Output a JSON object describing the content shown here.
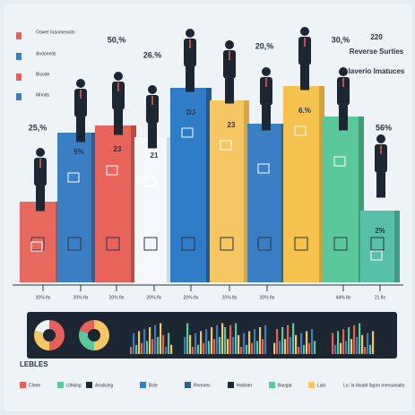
{
  "legend_top": [
    "Oower Inaomeonds",
    "Andoneds",
    "Bisode",
    "Mnods"
  ],
  "right_header": {
    "number": "220",
    "title": "Reverse Surties",
    "subtitle": "Iaverio Imatuces"
  },
  "percent_labels": [
    "25,%",
    "50,%",
    "26.%",
    "20,%",
    "30,%",
    "56%"
  ],
  "bar_labels": [
    "5%",
    "23",
    "21",
    "DJ",
    "23",
    "6.%",
    "2%"
  ],
  "axis_labels": [
    "20% flo",
    "20% flo",
    "20% flo",
    "20% flo",
    "20% flo",
    "20% flo",
    "20% flo",
    "44% flo",
    "21 flo"
  ],
  "legend_bottom": {
    "title": "LEBLES",
    "items": [
      "Clone",
      "Ulhking",
      "Analising",
      "Bsle",
      "Rnnmes",
      "Hokbier",
      "Bavgar",
      "Lalo"
    ],
    "note": "Lo: Ia bloald fagon mensonatio"
  }
}
